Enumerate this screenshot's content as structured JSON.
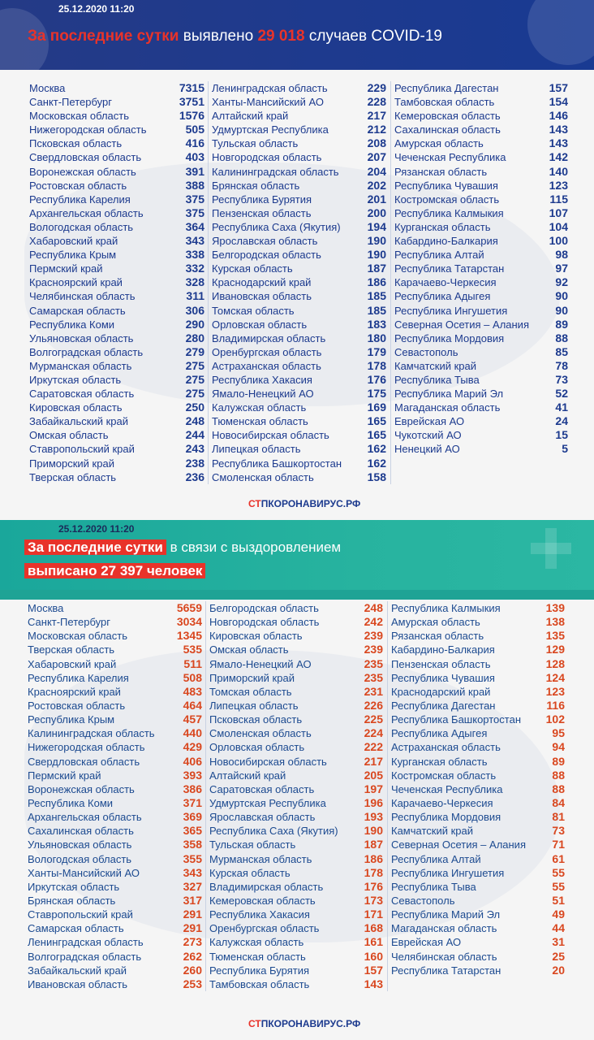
{
  "top": {
    "date": "25.12.2020 11:20",
    "headline_red": "За последние сутки",
    "headline_mid": "выявлено",
    "headline_num": "29 018",
    "headline_end": "случаев COVID-19",
    "logo_stop": "СТ",
    "logo_rest": "ПКОРОНАВИРУС.РФ",
    "columns": [
      [
        [
          "Москва",
          "7315"
        ],
        [
          "Санкт-Петербург",
          "3751"
        ],
        [
          "Московская область",
          "1576"
        ],
        [
          "Нижегородская область",
          "505"
        ],
        [
          "Псковская область",
          "416"
        ],
        [
          "Свердловская область",
          "403"
        ],
        [
          "Воронежская область",
          "391"
        ],
        [
          "Ростовская область",
          "388"
        ],
        [
          "Республика Карелия",
          "375"
        ],
        [
          "Архангельская область",
          "375"
        ],
        [
          "Вологодская область",
          "364"
        ],
        [
          "Хабаровский край",
          "343"
        ],
        [
          "Республика Крым",
          "338"
        ],
        [
          "Пермский край",
          "332"
        ],
        [
          "Красноярский край",
          "328"
        ],
        [
          "Челябинская область",
          "311"
        ],
        [
          "Самарская область",
          "306"
        ],
        [
          "Республика Коми",
          "290"
        ],
        [
          "Ульяновская область",
          "280"
        ],
        [
          "Волгоградская область",
          "279"
        ],
        [
          "Мурманская область",
          "275"
        ],
        [
          "Иркутская область",
          "275"
        ],
        [
          "Саратовская область",
          "275"
        ],
        [
          "Кировская область",
          "250"
        ],
        [
          "Забайкальский край",
          "248"
        ],
        [
          "Омская область",
          "244"
        ],
        [
          "Ставропольский край",
          "243"
        ],
        [
          "Приморский край",
          "238"
        ],
        [
          "Тверская область",
          "236"
        ]
      ],
      [
        [
          "Ленинградская область",
          "229"
        ],
        [
          "Ханты-Мансийский АО",
          "228"
        ],
        [
          "Алтайский край",
          "217"
        ],
        [
          "Удмуртская Республика",
          "212"
        ],
        [
          "Тульская область",
          "208"
        ],
        [
          "Новгородская область",
          "207"
        ],
        [
          "Калининградская область",
          "204"
        ],
        [
          "Брянская область",
          "202"
        ],
        [
          "Республика Бурятия",
          "201"
        ],
        [
          "Пензенская область",
          "200"
        ],
        [
          "Республика Саха (Якутия)",
          "194"
        ],
        [
          "Ярославская область",
          "190"
        ],
        [
          "Белгородская область",
          "190"
        ],
        [
          "Курская область",
          "187"
        ],
        [
          "Краснодарский край",
          "186"
        ],
        [
          "Ивановская область",
          "185"
        ],
        [
          "Томская область",
          "185"
        ],
        [
          "Орловская область",
          "183"
        ],
        [
          "Владимирская область",
          "180"
        ],
        [
          "Оренбургская область",
          "179"
        ],
        [
          "Астраханская область",
          "178"
        ],
        [
          "Республика Хакасия",
          "176"
        ],
        [
          "Ямало-Ненецкий АО",
          "175"
        ],
        [
          "Калужская область",
          "169"
        ],
        [
          "Тюменская область",
          "165"
        ],
        [
          "Новосибирская область",
          "165"
        ],
        [
          "Липецкая область",
          "162"
        ],
        [
          "Республика Башкортостан",
          "162"
        ],
        [
          "Смоленская область",
          "158"
        ]
      ],
      [
        [
          "Республика Дагестан",
          "157"
        ],
        [
          "Тамбовская область",
          "154"
        ],
        [
          "Кемеровская область",
          "146"
        ],
        [
          "Сахалинская область",
          "143"
        ],
        [
          "Амурская область",
          "143"
        ],
        [
          "Чеченская Республика",
          "142"
        ],
        [
          "Рязанская область",
          "140"
        ],
        [
          "Республика Чувашия",
          "123"
        ],
        [
          "Костромская область",
          "115"
        ],
        [
          "Республика Калмыкия",
          "107"
        ],
        [
          "Курганская область",
          "104"
        ],
        [
          "Кабардино-Балкария",
          "100"
        ],
        [
          "Республика Алтай",
          "98"
        ],
        [
          "Республика Татарстан",
          "97"
        ],
        [
          "Карачаево-Черкесия",
          "92"
        ],
        [
          "Республика Адыгея",
          "90"
        ],
        [
          "Республика Ингушетия",
          "90"
        ],
        [
          "Северная Осетия – Алания",
          "89"
        ],
        [
          "Республика Мордовия",
          "88"
        ],
        [
          "Севастополь",
          "85"
        ],
        [
          "Камчатский край",
          "78"
        ],
        [
          "Республика Тыва",
          "73"
        ],
        [
          "Республика Марий Эл",
          "52"
        ],
        [
          "Магаданская область",
          "41"
        ],
        [
          "Еврейская АО",
          "24"
        ],
        [
          "Чукотский АО",
          "15"
        ],
        [
          "Ненецкий АО",
          "5"
        ]
      ]
    ]
  },
  "bottom": {
    "date": "25.12.2020 11:20",
    "line1_hl": "За последние сутки",
    "line1_rest": "в связи с выздоровлением",
    "line2_hl_pre": "выписано",
    "line2_num": "27 397",
    "line2_post": "человек",
    "logo_stop": "СТ",
    "logo_rest": "ПКОРОНАВИРУС.РФ",
    "columns": [
      [
        [
          "Москва",
          "5659"
        ],
        [
          "Санкт-Петербург",
          "3034"
        ],
        [
          "Московская область",
          "1345"
        ],
        [
          "Тверская область",
          "535"
        ],
        [
          "Хабаровский край",
          "511"
        ],
        [
          "Республика Карелия",
          "508"
        ],
        [
          "Красноярский край",
          "483"
        ],
        [
          "Ростовская область",
          "464"
        ],
        [
          "Республика Крым",
          "457"
        ],
        [
          "Калининградская область",
          "440"
        ],
        [
          "Нижегородская область",
          "429"
        ],
        [
          "Свердловская область",
          "406"
        ],
        [
          "Пермский край",
          "393"
        ],
        [
          "Воронежская область",
          "386"
        ],
        [
          "Республика Коми",
          "371"
        ],
        [
          "Архангельская область",
          "369"
        ],
        [
          "Сахалинская область",
          "365"
        ],
        [
          "Ульяновская область",
          "358"
        ],
        [
          "Вологодская область",
          "355"
        ],
        [
          "Ханты-Мансийский АО",
          "343"
        ],
        [
          "Иркутская область",
          "327"
        ],
        [
          "Брянская область",
          "317"
        ],
        [
          "Ставропольский край",
          "291"
        ],
        [
          "Самарская область",
          "291"
        ],
        [
          "Ленинградская область",
          "273"
        ],
        [
          "Волгоградская область",
          "262"
        ],
        [
          "Забайкальский край",
          "260"
        ],
        [
          "Ивановская область",
          "253"
        ]
      ],
      [
        [
          "Белгородская область",
          "248"
        ],
        [
          "Новгородская область",
          "242"
        ],
        [
          "Кировская область",
          "239"
        ],
        [
          "Омская область",
          "239"
        ],
        [
          "Ямало-Ненецкий АО",
          "235"
        ],
        [
          "Приморский край",
          "235"
        ],
        [
          "Томская область",
          "231"
        ],
        [
          "Липецкая область",
          "226"
        ],
        [
          "Псковская область",
          "225"
        ],
        [
          "Смоленская область",
          "224"
        ],
        [
          "Орловская область",
          "222"
        ],
        [
          "Новосибирская область",
          "217"
        ],
        [
          "Алтайский край",
          "205"
        ],
        [
          "Саратовская область",
          "197"
        ],
        [
          "Удмуртская Республика",
          "196"
        ],
        [
          "Ярославская область",
          "193"
        ],
        [
          "Республика Саха (Якутия)",
          "190"
        ],
        [
          "Тульская область",
          "187"
        ],
        [
          "Мурманская область",
          "186"
        ],
        [
          "Курская область",
          "178"
        ],
        [
          "Владимирская область",
          "176"
        ],
        [
          "Кемеровская область",
          "173"
        ],
        [
          "Республика Хакасия",
          "171"
        ],
        [
          "Оренбургская область",
          "168"
        ],
        [
          "Калужская область",
          "161"
        ],
        [
          "Тюменская область",
          "160"
        ],
        [
          "Республика Бурятия",
          "157"
        ],
        [
          "Тамбовская область",
          "143"
        ]
      ],
      [
        [
          "Республика Калмыкия",
          "139"
        ],
        [
          "Амурская область",
          "138"
        ],
        [
          "Рязанская область",
          "135"
        ],
        [
          "Кабардино-Балкария",
          "129"
        ],
        [
          "Пензенская область",
          "128"
        ],
        [
          "Республика Чувашия",
          "124"
        ],
        [
          "Краснодарский край",
          "123"
        ],
        [
          "Республика Дагестан",
          "116"
        ],
        [
          "Республика Башкортостан",
          "102"
        ],
        [
          "Республика Адыгея",
          "95"
        ],
        [
          "Астраханская область",
          "94"
        ],
        [
          "Курганская область",
          "89"
        ],
        [
          "Костромская область",
          "88"
        ],
        [
          "Чеченская Республика",
          "88"
        ],
        [
          "Карачаево-Черкесия",
          "84"
        ],
        [
          "Республика Мордовия",
          "81"
        ],
        [
          "Камчатский край",
          "73"
        ],
        [
          "Северная Осетия – Алания",
          "71"
        ],
        [
          "Республика Алтай",
          "61"
        ],
        [
          "Республика Ингушетия",
          "55"
        ],
        [
          "Республика Тыва",
          "55"
        ],
        [
          "Севастополь",
          "51"
        ],
        [
          "Республика Марий Эл",
          "49"
        ],
        [
          "Магаданская область",
          "44"
        ],
        [
          "Еврейская АО",
          "31"
        ],
        [
          "Челябинская область",
          "25"
        ],
        [
          "Республика Татарстан",
          "20"
        ]
      ]
    ]
  }
}
